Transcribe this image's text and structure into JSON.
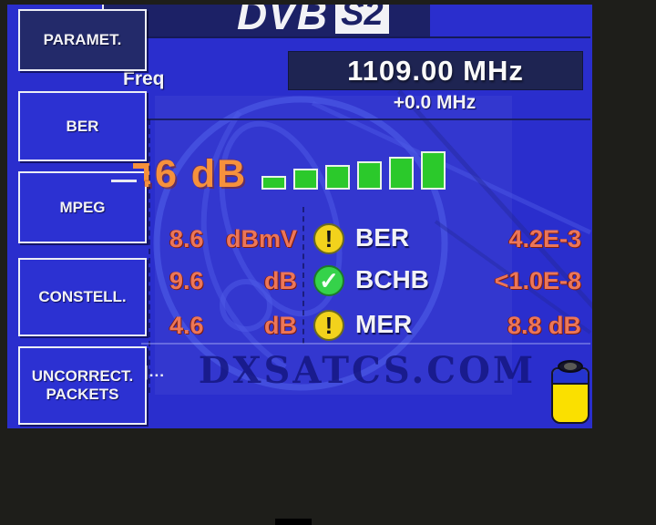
{
  "device": {
    "logo": {
      "dvb": "DVB",
      "s2": "S2"
    },
    "freq_label": "Freq",
    "frequency": "1109.00 MHz",
    "offset": "+0.0 MHz",
    "signal_level": ".6 dB",
    "overflow_dots": "|...",
    "watermark": "DXSATCS.COM",
    "battery": "battery-half"
  },
  "sidebar": {
    "buttons": [
      {
        "label": "PARAMET.",
        "active": true
      },
      {
        "label": "BER",
        "active": false
      },
      {
        "label": "MPEG",
        "active": false
      },
      {
        "label": "CONSTELL.",
        "active": false
      },
      {
        "label": "UNCORRECT. PACKETS",
        "active": false
      }
    ]
  },
  "signal_bars": {
    "count": 6,
    "heights": [
      15,
      23,
      27,
      31,
      36,
      42
    ],
    "color": "#2bc92b"
  },
  "measurements": {
    "rows": [
      {
        "value": "8.6",
        "unit": "dBmV",
        "icon": "warning",
        "label": "BER",
        "reading": "4.2E-3"
      },
      {
        "value": "9.6",
        "unit": "dB",
        "icon": "ok",
        "label": "BCHB",
        "reading": "<1.0E-8"
      },
      {
        "value": "4.6",
        "unit": "dB",
        "icon": "warning",
        "label": "MER",
        "reading": "8.8 dB"
      }
    ]
  },
  "colors": {
    "background_blue": "#2a2ecd",
    "panel_navy": "#1c2166",
    "value_orange": "#ec7658",
    "level_orange": "#f6913c",
    "bar_green": "#2bc92b",
    "warning_yellow": "#f2d21c",
    "ok_green": "#35d24a",
    "battery_yellow": "#fae000",
    "watermark_navy": "#14157f"
  }
}
